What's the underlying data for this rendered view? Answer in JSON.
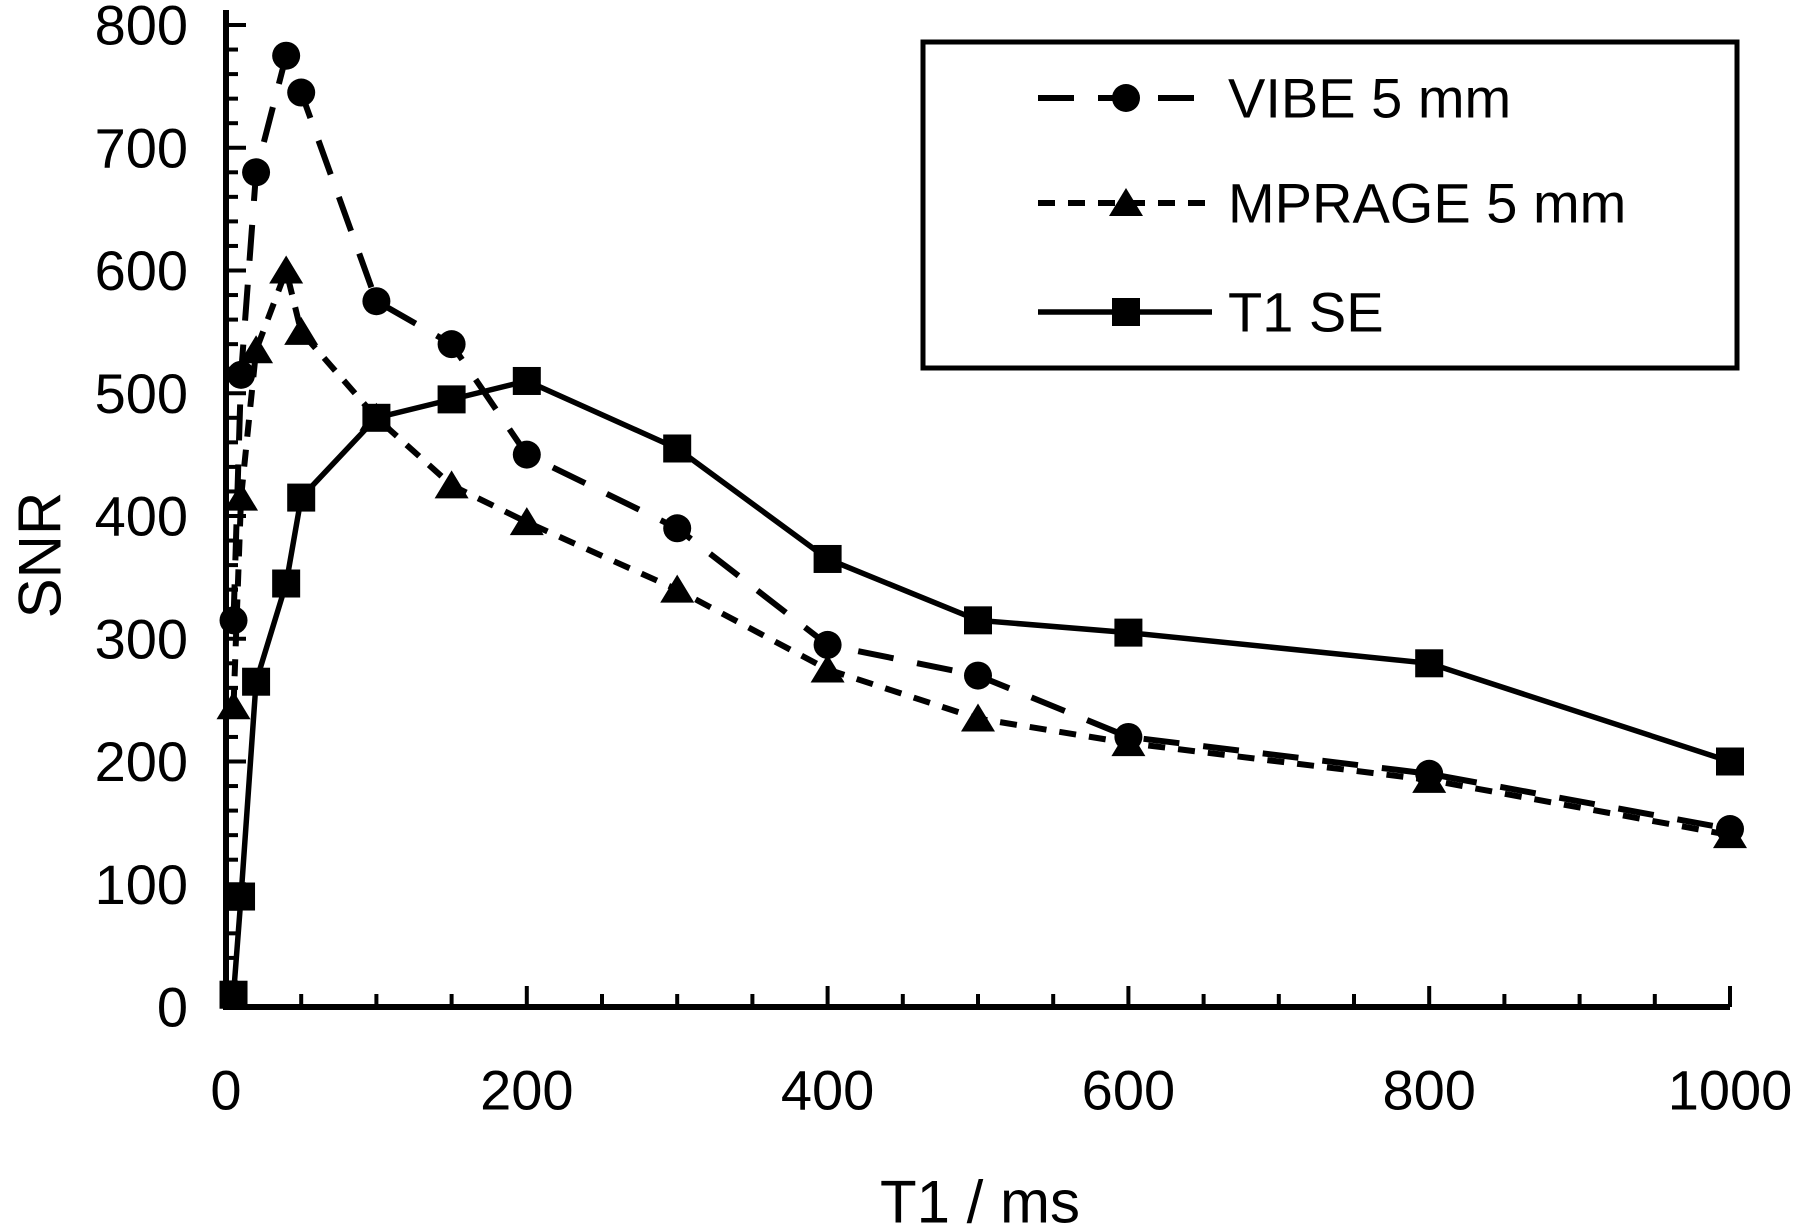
{
  "figure": {
    "background_color": "#ffffff",
    "line_color": "#000000"
  },
  "chart_data": {
    "type": "line",
    "title": "",
    "xlabel": "T1 / ms",
    "ylabel": "SNR",
    "xlim": [
      0,
      1000
    ],
    "ylim": [
      0,
      800
    ],
    "grid": "off",
    "legend_position": "top-right",
    "x_tick_values": [
      0,
      200,
      400,
      600,
      800,
      1000
    ],
    "x_tick_labels": [
      "0",
      "200",
      "400",
      "600",
      "800",
      "1000"
    ],
    "x_minor_step": 50,
    "y_tick_values": [
      800,
      700,
      600,
      500,
      400,
      300,
      200,
      100,
      0
    ],
    "y_tick_labels": [
      "800",
      "700",
      "600",
      "500",
      "400",
      "300",
      "200",
      "100",
      "0"
    ],
    "y_minor_step": 20,
    "x": [
      5,
      10,
      20,
      40,
      50,
      100,
      150,
      200,
      300,
      400,
      500,
      600,
      800,
      1000
    ],
    "series": [
      {
        "name": "VIBE 5 mm",
        "marker": "circle",
        "line": "long-dash",
        "values": [
          315,
          515,
          680,
          775,
          745,
          575,
          540,
          450,
          390,
          295,
          270,
          220,
          190,
          145
        ]
      },
      {
        "name": "MPRAGE 5 mm",
        "marker": "triangle",
        "line": "short-dash",
        "values": [
          245,
          415,
          535,
          600,
          550,
          480,
          425,
          395,
          340,
          275,
          235,
          215,
          185,
          140
        ]
      },
      {
        "name": "T1 SE",
        "marker": "square",
        "line": "solid",
        "values": [
          10,
          90,
          265,
          345,
          415,
          480,
          495,
          510,
          455,
          365,
          315,
          305,
          280,
          200
        ]
      }
    ]
  }
}
